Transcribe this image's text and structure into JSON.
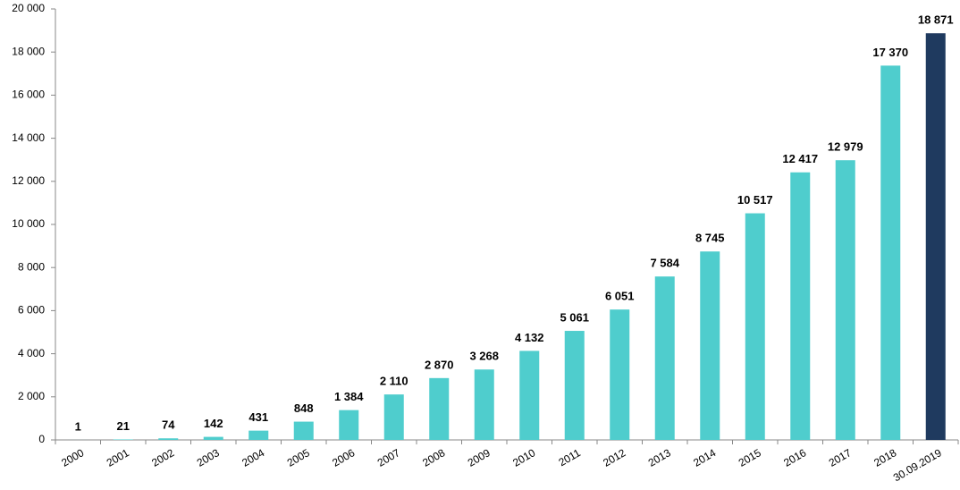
{
  "chart_data": {
    "type": "bar",
    "categories": [
      "2000",
      "2001",
      "2002",
      "2003",
      "2004",
      "2005",
      "2006",
      "2007",
      "2008",
      "2009",
      "2010",
      "2011",
      "2012",
      "2013",
      "2014",
      "2015",
      "2016",
      "2017",
      "2018",
      "30.09.2019"
    ],
    "values": [
      1,
      21,
      74,
      142,
      431,
      848,
      1384,
      2110,
      2870,
      3268,
      4132,
      5061,
      6051,
      7584,
      8745,
      10517,
      12417,
      12979,
      17370,
      18871
    ],
    "value_labels": [
      "1",
      "21",
      "74",
      "142",
      "431",
      "848",
      "1 384",
      "2 110",
      "2 870",
      "3 268",
      "4 132",
      "5 061",
      "6 051",
      "7 584",
      "8 745",
      "10 517",
      "12 417",
      "12 979",
      "17 370",
      "18 871"
    ],
    "colors": [
      "#4fcdcd",
      "#4fcdcd",
      "#4fcdcd",
      "#4fcdcd",
      "#4fcdcd",
      "#4fcdcd",
      "#4fcdcd",
      "#4fcdcd",
      "#4fcdcd",
      "#4fcdcd",
      "#4fcdcd",
      "#4fcdcd",
      "#4fcdcd",
      "#4fcdcd",
      "#4fcdcd",
      "#4fcdcd",
      "#4fcdcd",
      "#4fcdcd",
      "#4fcdcd",
      "#1f3a5f"
    ],
    "ylim": [
      0,
      20000
    ],
    "yticks": [
      0,
      {
        "value": 2000,
        "label": "2 000"
      },
      {
        "value": 4000,
        "label": "4 000"
      },
      {
        "value": 6000,
        "label": "6 000"
      },
      {
        "value": 8000,
        "label": "8 000"
      },
      {
        "value": 10000,
        "label": "10 000"
      },
      {
        "value": 12000,
        "label": "12 000"
      },
      {
        "value": 14000,
        "label": "14 000"
      },
      {
        "value": 16000,
        "label": "16 000"
      },
      {
        "value": 18000,
        "label": "18 000"
      },
      {
        "value": 20000,
        "label": "20 000"
      }
    ],
    "grid": false
  }
}
